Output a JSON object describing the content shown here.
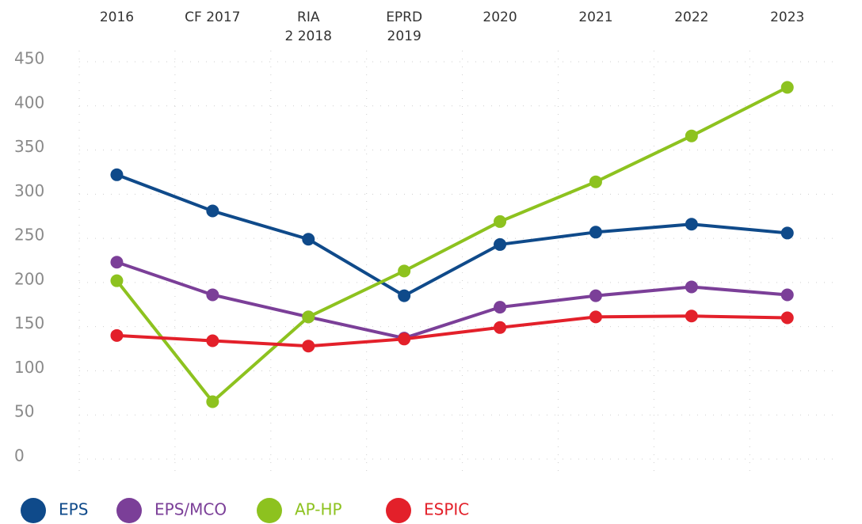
{
  "chart_data": {
    "type": "line",
    "categories": [
      "2016",
      "CF 2017",
      "RIA\n2 2018",
      "EPRD\n2019",
      "2020",
      "2021",
      "2022",
      "2023"
    ],
    "series": [
      {
        "name": "EPS",
        "color": "#0f4a8a",
        "values": [
          322,
          281,
          249,
          185,
          243,
          257,
          266,
          256
        ]
      },
      {
        "name": "EPS/MCO",
        "color": "#7b3f98",
        "values": [
          223,
          186,
          161,
          137,
          172,
          185,
          195,
          186
        ]
      },
      {
        "name": "AP-HP",
        "color": "#8dc21f",
        "values": [
          202,
          65,
          161,
          213,
          269,
          314,
          366,
          421
        ]
      },
      {
        "name": "ESPIC",
        "color": "#e3202a",
        "values": [
          140,
          134,
          128,
          136,
          149,
          161,
          162,
          160
        ]
      }
    ],
    "ylim": [
      0,
      450
    ],
    "yticks": [
      0,
      50,
      100,
      150,
      200,
      250,
      300,
      350,
      400,
      450
    ],
    "grid": true,
    "legend": "bottom"
  }
}
